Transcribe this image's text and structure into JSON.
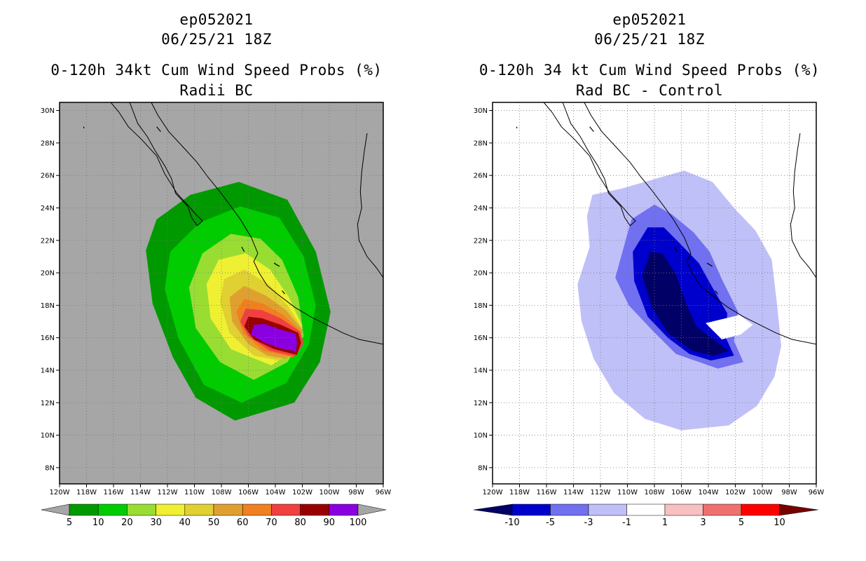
{
  "chart_data": [
    {
      "type": "heatmap",
      "storm_id": "ep052021",
      "date": "06/25/21 18Z",
      "title": "0-120h 34kt Cum Wind Speed Probs (%)",
      "subtitle": "Radii BC",
      "x_ticks": [
        "120W",
        "118W",
        "116W",
        "114W",
        "112W",
        "110W",
        "108W",
        "106W",
        "104W",
        "102W",
        "100W",
        "98W",
        "96W"
      ],
      "y_ticks": [
        "8N",
        "10N",
        "12N",
        "14N",
        "16N",
        "18N",
        "20N",
        "22N",
        "24N",
        "26N",
        "28N",
        "30N"
      ],
      "xlim": [
        -120,
        -96
      ],
      "ylim": [
        7,
        30.5
      ],
      "background_color": "#a6a6a6",
      "legend": {
        "labels": [
          "5",
          "10",
          "20",
          "30",
          "40",
          "50",
          "60",
          "70",
          "80",
          "90",
          "100"
        ],
        "colors": [
          "#009900",
          "#00cc00",
          "#99dd33",
          "#f0f032",
          "#e0d032",
          "#e0a030",
          "#f08020",
          "#f04040",
          "#990000",
          "#8a00e0"
        ],
        "end_colors": [
          "#a6a6a6",
          "#a6a6a6"
        ]
      },
      "contours": [
        {
          "level": 5,
          "color": "#009900",
          "poly": [
            [
              -107,
              10.9
            ],
            [
              -102.6,
              12
            ],
            [
              -100.7,
              14.5
            ],
            [
              -99.9,
              17.6
            ],
            [
              -101,
              21.3
            ],
            [
              -103.1,
              24.5
            ],
            [
              -106.7,
              25.6
            ],
            [
              -110.3,
              24.8
            ],
            [
              -112.8,
              23.3
            ],
            [
              -113.6,
              21.4
            ],
            [
              -113.1,
              18.1
            ],
            [
              -111.6,
              14.8
            ],
            [
              -109.9,
              12.3
            ]
          ]
        },
        {
          "level": 10,
          "color": "#00cc00",
          "poly": [
            [
              -106.5,
              12
            ],
            [
              -103.2,
              13.2
            ],
            [
              -101.5,
              15.6
            ],
            [
              -101,
              18
            ],
            [
              -101.9,
              21
            ],
            [
              -103.7,
              23.4
            ],
            [
              -106.6,
              24.1
            ],
            [
              -109.6,
              23.1
            ],
            [
              -111.8,
              21.3
            ],
            [
              -112.2,
              19
            ],
            [
              -111.2,
              16
            ],
            [
              -109.3,
              13.1
            ]
          ]
        },
        {
          "level": 20,
          "color": "#99dd33",
          "poly": [
            [
              -105.6,
              13.4
            ],
            [
              -103.1,
              14.5
            ],
            [
              -101.9,
              16.1
            ],
            [
              -102.3,
              18.5
            ],
            [
              -103.5,
              20.8
            ],
            [
              -105.1,
              22.1
            ],
            [
              -107.3,
              22.4
            ],
            [
              -109.4,
              21.2
            ],
            [
              -110.4,
              19.1
            ],
            [
              -109.9,
              16.6
            ],
            [
              -108.1,
              14.5
            ]
          ]
        },
        {
          "level": 30,
          "color": "#f0f032",
          "poly": [
            [
              -104.3,
              14.3
            ],
            [
              -102.3,
              15.4
            ],
            [
              -102,
              16.7
            ],
            [
              -103,
              18.5
            ],
            [
              -104.4,
              20.2
            ],
            [
              -106.2,
              21.2
            ],
            [
              -108.2,
              20.8
            ],
            [
              -109.1,
              19.3
            ],
            [
              -108.8,
              17.2
            ],
            [
              -107.3,
              15.3
            ]
          ]
        },
        {
          "level": 40,
          "color": "#e0d032",
          "poly": [
            [
              -103.7,
              14.6
            ],
            [
              -102.2,
              15.5
            ],
            [
              -102,
              16.6
            ],
            [
              -103.1,
              18
            ],
            [
              -104.5,
              19.3
            ],
            [
              -106.3,
              20.2
            ],
            [
              -107.8,
              19.6
            ],
            [
              -108.1,
              18.2
            ],
            [
              -107.4,
              16.3
            ],
            [
              -105.6,
              14.9
            ]
          ]
        },
        {
          "level": 50,
          "color": "#e0a030",
          "poly": [
            [
              -103.2,
              14.7
            ],
            [
              -102.1,
              15.5
            ],
            [
              -102,
              16.5
            ],
            [
              -103.2,
              17.7
            ],
            [
              -104.7,
              18.6
            ],
            [
              -106.3,
              19.2
            ],
            [
              -107.4,
              18.5
            ],
            [
              -107.2,
              17
            ],
            [
              -106,
              15.6
            ],
            [
              -104.6,
              14.9
            ]
          ]
        },
        {
          "level": 60,
          "color": "#f08020",
          "poly": [
            [
              -102.7,
              14.8
            ],
            [
              -102,
              15.6
            ],
            [
              -102.1,
              16.4
            ],
            [
              -103.4,
              17.4
            ],
            [
              -104.9,
              18.1
            ],
            [
              -106.3,
              18.4
            ],
            [
              -106.9,
              17.6
            ],
            [
              -106.4,
              16.3
            ],
            [
              -104.9,
              15.2
            ]
          ]
        },
        {
          "level": 70,
          "color": "#f04040",
          "poly": [
            [
              -102.5,
              14.85
            ],
            [
              -101.9,
              15.7
            ],
            [
              -102.2,
              16.4
            ],
            [
              -103.6,
              17.2
            ],
            [
              -105,
              17.7
            ],
            [
              -106.2,
              17.8
            ],
            [
              -106.6,
              17
            ],
            [
              -106,
              16.1
            ],
            [
              -104.4,
              15.2
            ]
          ]
        },
        {
          "level": 80,
          "color": "#990000",
          "poly": [
            [
              -102.4,
              14.95
            ],
            [
              -102.1,
              15.7
            ],
            [
              -102.3,
              16.3
            ],
            [
              -103.6,
              16.8
            ],
            [
              -105,
              17.2
            ],
            [
              -106,
              17.3
            ],
            [
              -106.3,
              16.7
            ],
            [
              -105.6,
              15.9
            ],
            [
              -104.1,
              15.3
            ]
          ]
        },
        {
          "level": 90,
          "color": "#8a00e0",
          "poly": [
            [
              -102.45,
              15.15
            ],
            [
              -102.4,
              15.75
            ],
            [
              -102.5,
              16.25
            ],
            [
              -103.6,
              16.5
            ],
            [
              -104.8,
              16.85
            ],
            [
              -105.6,
              16.8
            ],
            [
              -105.8,
              16.2
            ],
            [
              -104.8,
              15.7
            ],
            [
              -103.6,
              15.35
            ]
          ]
        }
      ]
    },
    {
      "type": "heatmap",
      "storm_id": "ep052021",
      "date": "06/25/21 18Z",
      "title": "0-120h 34 kt Cum Wind Speed Probs (%)",
      "subtitle": "Rad BC - Control",
      "x_ticks": [
        "120W",
        "118W",
        "116W",
        "114W",
        "112W",
        "110W",
        "108W",
        "106W",
        "104W",
        "102W",
        "100W",
        "98W",
        "96W"
      ],
      "y_ticks": [
        "8N",
        "10N",
        "12N",
        "14N",
        "16N",
        "18N",
        "20N",
        "22N",
        "24N",
        "26N",
        "28N",
        "30N"
      ],
      "xlim": [
        -120,
        -96
      ],
      "ylim": [
        7,
        30.5
      ],
      "background_color": "#ffffff",
      "legend": {
        "labels": [
          "-10",
          "-5",
          "-3",
          "-1",
          "1",
          "3",
          "5",
          "10"
        ],
        "colors": [
          "#0000cc",
          "#7070f0",
          "#c0c0f8",
          "#ffffff",
          "#f8c0c0",
          "#f07070",
          "#ff0000"
        ],
        "end_colors": [
          "#000066",
          "#770000"
        ]
      },
      "contours": [
        {
          "level": -1,
          "color": "#c0c0f8",
          "poly": [
            [
              -106,
              10.3
            ],
            [
              -102.5,
              10.6
            ],
            [
              -100.4,
              11.8
            ],
            [
              -99.1,
              13.6
            ],
            [
              -98.6,
              15.5
            ],
            [
              -98.9,
              18
            ],
            [
              -99.3,
              20.8
            ],
            [
              -100.5,
              22.6
            ],
            [
              -102.1,
              24
            ],
            [
              -103.7,
              25.6
            ],
            [
              -105.8,
              26.3
            ],
            [
              -108.3,
              25.7
            ],
            [
              -110.4,
              25.2
            ],
            [
              -112.6,
              24.8
            ],
            [
              -113,
              23.5
            ],
            [
              -112.8,
              21.6
            ],
            [
              -113.7,
              19.3
            ],
            [
              -113.4,
              17
            ],
            [
              -112.5,
              14.7
            ],
            [
              -111,
              12.6
            ],
            [
              -108.7,
              11
            ]
          ]
        },
        {
          "level": -3,
          "color": "#7070f0",
          "poly": [
            [
              -103.3,
              14.1
            ],
            [
              -101.4,
              14.5
            ],
            [
              -102.1,
              15.8
            ],
            [
              -101.8,
              17.6
            ],
            [
              -103,
              19.6
            ],
            [
              -103.9,
              21.3
            ],
            [
              -105.1,
              22.5
            ],
            [
              -106.7,
              23.6
            ],
            [
              -108,
              24.2
            ],
            [
              -109.7,
              23.3
            ],
            [
              -110.2,
              21.8
            ],
            [
              -110.9,
              19.7
            ],
            [
              -109.9,
              18
            ],
            [
              -108.2,
              16.5
            ],
            [
              -106.4,
              15
            ]
          ]
        },
        {
          "level": -5,
          "color": "#0000cc",
          "poly": [
            [
              -103.8,
              14.6
            ],
            [
              -102.1,
              14.9
            ],
            [
              -102.7,
              16
            ],
            [
              -102.6,
              17.5
            ],
            [
              -103.7,
              19.1
            ],
            [
              -104.7,
              20.6
            ],
            [
              -106.1,
              21.8
            ],
            [
              -107.3,
              22.8
            ],
            [
              -108.5,
              22.8
            ],
            [
              -109.6,
              21.3
            ],
            [
              -109.5,
              19.5
            ],
            [
              -108.5,
              17.3
            ],
            [
              -107,
              16
            ],
            [
              -105.4,
              15
            ]
          ]
        },
        {
          "level": -10,
          "color": "#000066",
          "poly": [
            [
              -103.6,
              14.9
            ],
            [
              -102.5,
              15.2
            ],
            [
              -103.6,
              15.9
            ],
            [
              -104.9,
              16.7
            ],
            [
              -105.7,
              18.2
            ],
            [
              -106.4,
              19.9
            ],
            [
              -107.4,
              21.2
            ],
            [
              -108.3,
              21.3
            ],
            [
              -108.9,
              19.8
            ],
            [
              -108.2,
              17.9
            ],
            [
              -107,
              16.3
            ],
            [
              -105.2,
              15.2
            ]
          ]
        }
      ],
      "holes": [
        {
          "level": -1,
          "color": "#ffffff",
          "poly": [
            [
              -104.2,
              16.9
            ],
            [
              -101.7,
              17.4
            ],
            [
              -100.7,
              16.8
            ],
            [
              -101.6,
              16.2
            ],
            [
              -103,
              15.9
            ]
          ]
        }
      ]
    }
  ],
  "coastlines": [
    [
      [
        -116.2,
        30.5
      ],
      [
        -115.6,
        29.9
      ],
      [
        -114.9,
        29
      ],
      [
        -113.9,
        28.2
      ],
      [
        -112.8,
        27.2
      ],
      [
        -112.2,
        26.1
      ],
      [
        -111.3,
        24.9
      ],
      [
        -110.3,
        24
      ],
      [
        -109.9,
        23.6
      ],
      [
        -109.4,
        23.2
      ],
      [
        -109.8,
        22.9
      ],
      [
        -110.2,
        23.4
      ],
      [
        -110.5,
        24.1
      ],
      [
        -111.4,
        24.9
      ],
      [
        -111.7,
        25.8
      ],
      [
        -112.2,
        26.6
      ],
      [
        -112.9,
        27.5
      ],
      [
        -113.5,
        28.4
      ],
      [
        -114.2,
        29.2
      ],
      [
        -114.8,
        30.5
      ]
    ],
    [
      [
        -113.2,
        30.5
      ],
      [
        -112.7,
        29.7
      ],
      [
        -111.9,
        28.7
      ],
      [
        -110.9,
        27.8
      ],
      [
        -109.8,
        26.8
      ],
      [
        -109,
        25.9
      ],
      [
        -108.2,
        25.1
      ],
      [
        -107.3,
        24.1
      ],
      [
        -106.6,
        23.3
      ],
      [
        -105.8,
        22.2
      ],
      [
        -105.3,
        21.2
      ],
      [
        -105.6,
        20.7
      ],
      [
        -105.2,
        20
      ],
      [
        -104.6,
        19.2
      ],
      [
        -103.7,
        18.6
      ],
      [
        -102.6,
        17.9
      ],
      [
        -101.4,
        17.3
      ],
      [
        -100.2,
        16.8
      ],
      [
        -99,
        16.3
      ],
      [
        -97.8,
        15.9
      ],
      [
        -96,
        15.6
      ]
    ],
    [
      [
        -97.2,
        28.6
      ],
      [
        -97.4,
        27.5
      ],
      [
        -97.6,
        26.2
      ],
      [
        -97.7,
        25
      ],
      [
        -97.6,
        24
      ],
      [
        -97.9,
        23
      ],
      [
        -97.8,
        22
      ],
      [
        -97.2,
        21
      ],
      [
        -96.5,
        20.3
      ],
      [
        -96,
        19.7
      ]
    ]
  ],
  "islands": [
    [
      [
        -118.2,
        29
      ],
      [
        -118.2,
        28.9
      ]
    ],
    [
      [
        -112.8,
        29
      ],
      [
        -112.5,
        28.7
      ]
    ],
    [
      [
        -106.5,
        21.6
      ],
      [
        -106.3,
        21.3
      ]
    ],
    [
      [
        -104.1,
        20.6
      ],
      [
        -103.7,
        20.4
      ]
    ],
    [
      [
        -103.5,
        18.9
      ],
      [
        -103.3,
        18.7
      ]
    ]
  ]
}
